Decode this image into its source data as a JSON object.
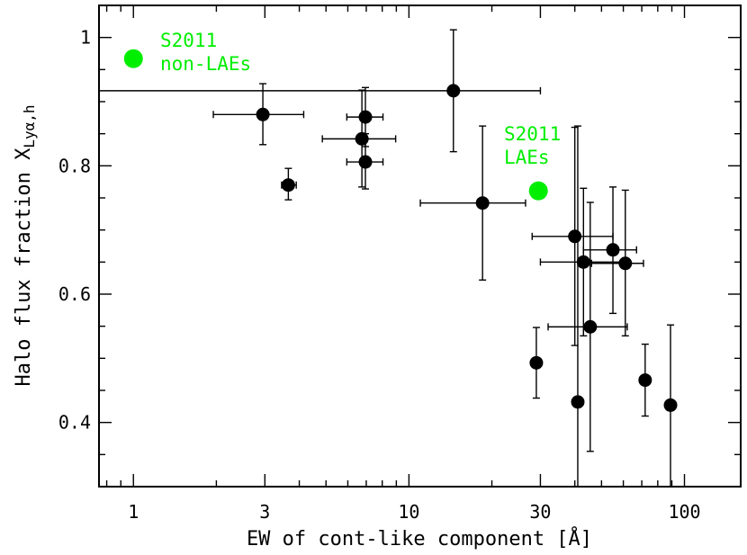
{
  "chart_data": {
    "type": "scatter",
    "xlabel": "EW of cont-like component [Å]",
    "ylabel_prefix": "Halo flux fraction X",
    "ylabel_sub": "Lyα,h",
    "xscale": "log",
    "xlim": [
      0.75,
      160
    ],
    "ylim": [
      0.3,
      1.05
    ],
    "xticks": [
      {
        "value": 1,
        "label": "1"
      },
      {
        "value": 3,
        "label": "3"
      },
      {
        "value": 10,
        "label": "10"
      },
      {
        "value": 30,
        "label": "30"
      },
      {
        "value": 100,
        "label": "100"
      }
    ],
    "yticks": [
      {
        "value": 0.4,
        "label": "0.4"
      },
      {
        "value": 0.6,
        "label": "0.6"
      },
      {
        "value": 0.8,
        "label": "0.8"
      },
      {
        "value": 1.0,
        "label": "1"
      }
    ],
    "colors": {
      "points": "#000000",
      "reference": "#00ee00"
    },
    "points": [
      {
        "x": 2.95,
        "y": 0.88,
        "xerr": [
          1.95,
          4.15
        ],
        "yerr": [
          0.833,
          0.928
        ]
      },
      {
        "x": 3.65,
        "y": 0.77,
        "xerr": [
          3.45,
          3.9
        ],
        "yerr": [
          0.747,
          0.796
        ]
      },
      {
        "x": 6.95,
        "y": 0.876,
        "xerr": [
          5.95,
          8.05
        ],
        "yerr": [
          0.83,
          0.922
        ]
      },
      {
        "x": 6.75,
        "y": 0.842,
        "xerr": [
          4.85,
          8.95
        ],
        "yerr": [
          0.767,
          0.918
        ]
      },
      {
        "x": 6.95,
        "y": 0.806,
        "xerr": [
          5.95,
          8.05
        ],
        "yerr": [
          0.764,
          0.85
        ]
      },
      {
        "x": 14.5,
        "y": 0.917,
        "xerr": [
          0.75,
          30.0
        ],
        "yerr": [
          0.822,
          1.012
        ]
      },
      {
        "x": 18.5,
        "y": 0.742,
        "xerr": [
          11.0,
          26.5
        ],
        "yerr": [
          0.622,
          0.862
        ]
      },
      {
        "x": 29.0,
        "y": 0.493,
        "xerr": [
          28.0,
          30.0
        ],
        "yerr": [
          0.438,
          0.548
        ]
      },
      {
        "x": 40.0,
        "y": 0.69,
        "xerr": [
          28.0,
          55.0
        ],
        "yerr": [
          0.52,
          0.86
        ]
      },
      {
        "x": 41.0,
        "y": 0.432,
        "xerr": [
          39.5,
          42.5
        ],
        "yerr": [
          0.28,
          0.862
        ]
      },
      {
        "x": 43.0,
        "y": 0.65,
        "xerr": [
          30.0,
          60.0
        ],
        "yerr": [
          0.535,
          0.765
        ]
      },
      {
        "x": 45.5,
        "y": 0.549,
        "xerr": [
          32.0,
          62.0
        ],
        "yerr": [
          0.355,
          0.743
        ]
      },
      {
        "x": 55.0,
        "y": 0.669,
        "xerr": [
          43.0,
          67.0
        ],
        "yerr": [
          0.57,
          0.767
        ]
      },
      {
        "x": 61.0,
        "y": 0.648,
        "xerr": [
          46.0,
          71.0
        ],
        "yerr": [
          0.535,
          0.762
        ]
      },
      {
        "x": 72.0,
        "y": 0.466,
        "xerr": [
          71.0,
          73.0
        ],
        "yerr": [
          0.41,
          0.522
        ]
      },
      {
        "x": 89.0,
        "y": 0.427,
        "xerr": [
          88.0,
          90.0
        ],
        "yerr": [
          0.28,
          0.552
        ]
      }
    ],
    "reference_points": [
      {
        "x": 1.0,
        "y": 0.967,
        "label_lines": [
          "S2011",
          "non-LAEs"
        ]
      },
      {
        "x": 29.5,
        "y": 0.761,
        "label_lines": [
          "S2011",
          "LAEs"
        ]
      }
    ]
  }
}
